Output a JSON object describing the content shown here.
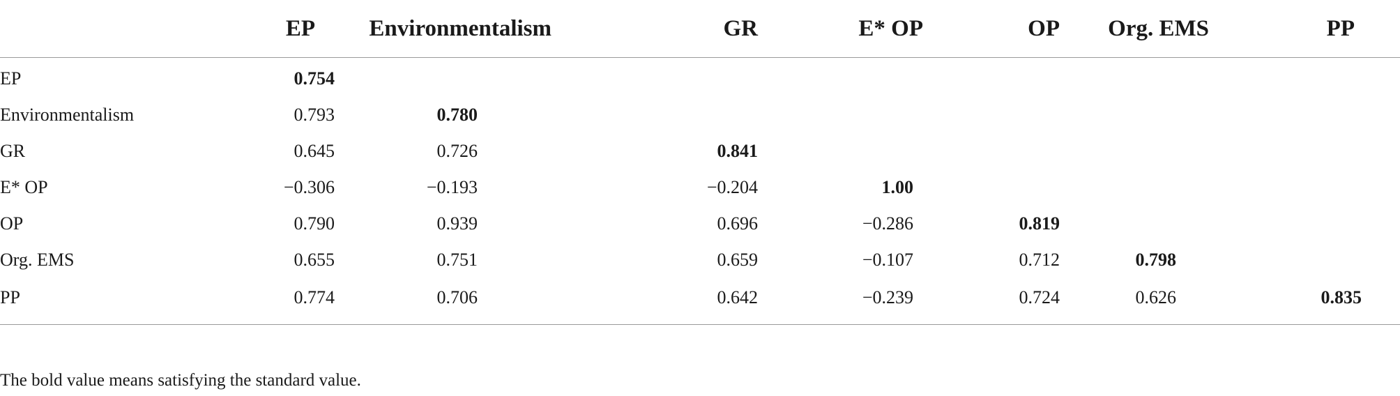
{
  "table": {
    "columns": [
      "",
      "EP",
      "Environmentalism",
      "GR",
      "E* OP",
      "OP",
      "Org. EMS",
      "PP"
    ],
    "rows": [
      {
        "label": "EP",
        "values": [
          "0.754",
          "",
          "",
          "",
          "",
          "",
          ""
        ]
      },
      {
        "label": "Environmentalism",
        "values": [
          "0.793",
          "0.780",
          "",
          "",
          "",
          "",
          ""
        ]
      },
      {
        "label": "GR",
        "values": [
          "0.645",
          "0.726",
          "0.841",
          "",
          "",
          "",
          ""
        ]
      },
      {
        "label": "E* OP",
        "values": [
          "−0.306",
          "−0.193",
          "−0.204",
          "1.00",
          "",
          "",
          ""
        ]
      },
      {
        "label": "OP",
        "values": [
          "0.790",
          "0.939",
          "0.696",
          "−0.286",
          "0.819",
          "",
          ""
        ]
      },
      {
        "label": "Org. EMS",
        "values": [
          "0.655",
          "0.751",
          "0.659",
          "−0.107",
          "0.712",
          "0.798",
          ""
        ]
      },
      {
        "label": "PP",
        "values": [
          "0.774",
          "0.706",
          "0.642",
          "−0.239",
          "0.724",
          "0.626",
          "0.835"
        ]
      }
    ]
  },
  "footnote": "The bold value means satisfying the standard value."
}
